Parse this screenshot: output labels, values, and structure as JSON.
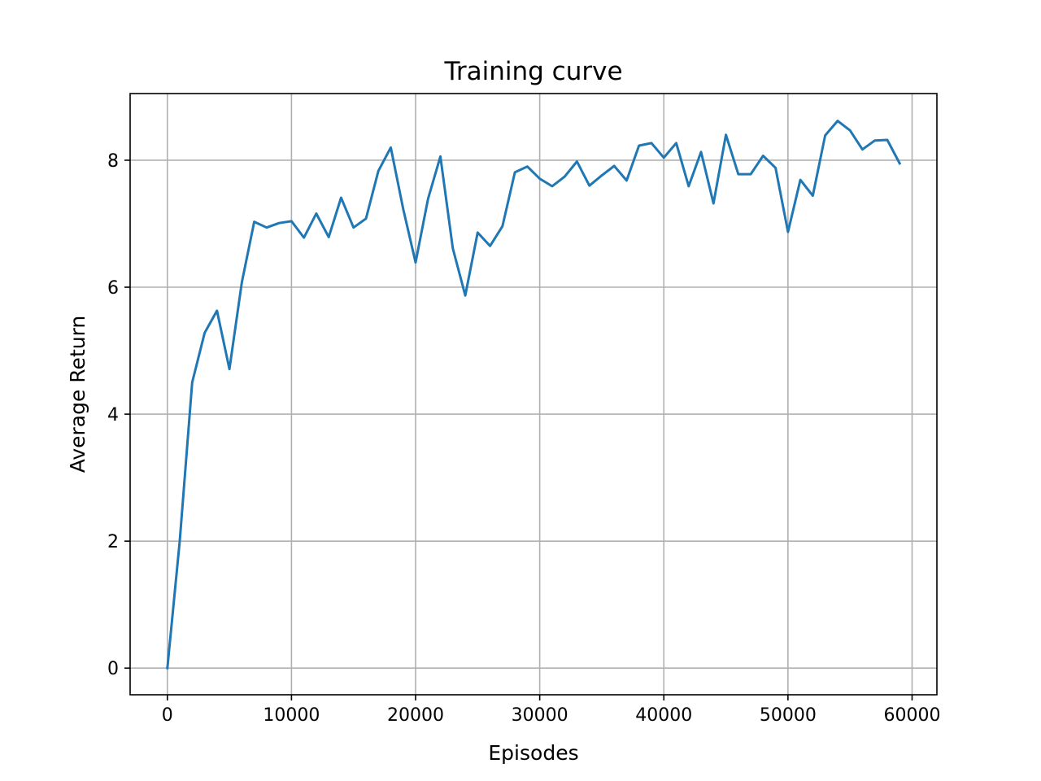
{
  "chart_data": {
    "type": "line",
    "title": "Training curve",
    "xlabel": "Episodes",
    "ylabel": "Average Return",
    "xlim": [
      -3000,
      62000
    ],
    "ylim": [
      -0.42,
      9.05
    ],
    "xticks": [
      0,
      10000,
      20000,
      30000,
      40000,
      50000,
      60000
    ],
    "xtick_labels": [
      "0",
      "10000",
      "20000",
      "30000",
      "40000",
      "50000",
      "60000"
    ],
    "yticks": [
      0,
      2,
      4,
      6,
      8
    ],
    "ytick_labels": [
      "0",
      "2",
      "4",
      "6",
      "8"
    ],
    "grid": true,
    "legend": "none",
    "series": [
      {
        "color": "#1f77b4",
        "x": [
          0,
          1000,
          2000,
          3000,
          4000,
          5000,
          6000,
          7000,
          8000,
          9000,
          10000,
          11000,
          12000,
          13000,
          14000,
          15000,
          16000,
          17000,
          18000,
          19000,
          20000,
          21000,
          22000,
          23000,
          24000,
          25000,
          26000,
          27000,
          28000,
          29000,
          30000,
          31000,
          32000,
          33000,
          34000,
          35000,
          36000,
          37000,
          38000,
          39000,
          40000,
          41000,
          42000,
          43000,
          44000,
          45000,
          46000,
          47000,
          48000,
          49000,
          50000,
          51000,
          52000,
          53000,
          54000,
          55000,
          56000,
          57000,
          58000,
          59000
        ],
        "y": [
          0.0,
          2.0,
          4.5,
          5.28,
          5.63,
          4.71,
          6.08,
          7.03,
          6.94,
          7.01,
          7.04,
          6.78,
          7.16,
          6.79,
          7.41,
          6.94,
          7.08,
          7.83,
          8.2,
          7.23,
          6.39,
          7.39,
          8.06,
          6.61,
          5.87,
          6.86,
          6.65,
          6.96,
          7.81,
          7.9,
          7.71,
          7.59,
          7.74,
          7.98,
          7.6,
          7.76,
          7.91,
          7.68,
          8.23,
          8.27,
          8.04,
          8.27,
          7.59,
          8.13,
          7.32,
          8.4,
          7.78,
          7.78,
          8.07,
          7.88,
          6.87,
          7.69,
          7.44,
          8.39,
          8.62,
          8.47,
          8.17,
          8.31,
          8.32,
          7.95
        ]
      }
    ]
  }
}
